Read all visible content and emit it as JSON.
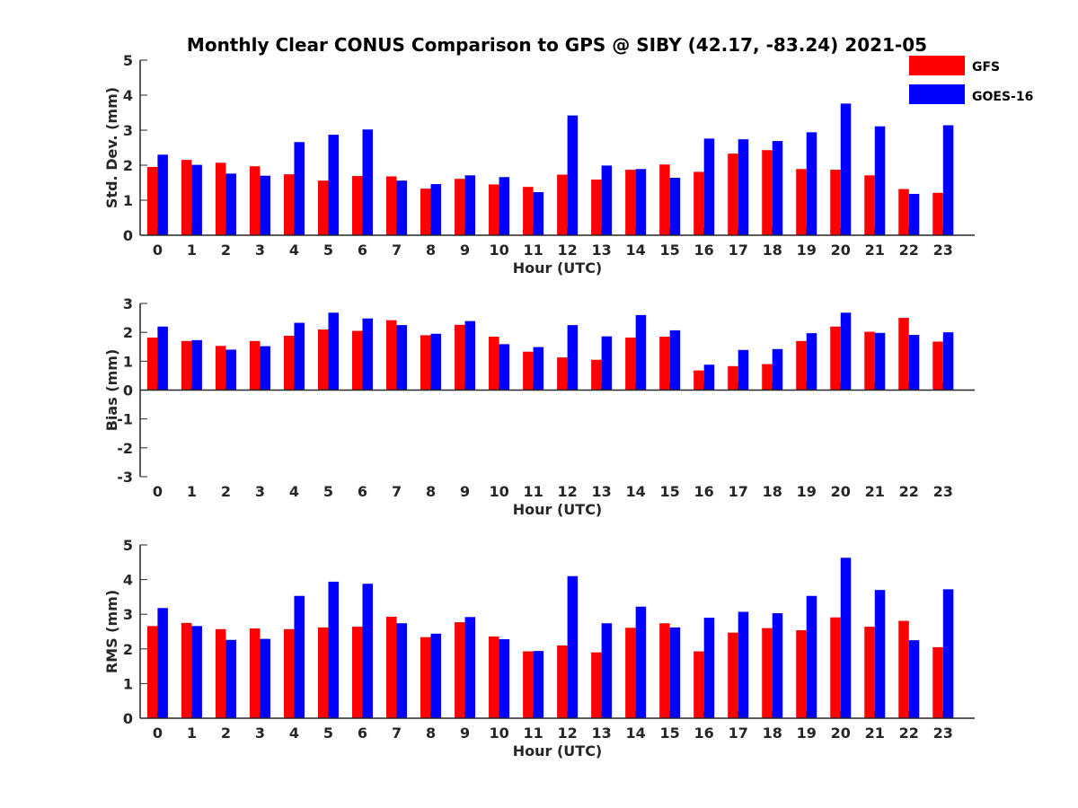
{
  "title": "Monthly Clear CONUS Comparison to GPS @ SIBY (42.17, -83.24) 2021-05",
  "legend": [
    {
      "name": "GFS",
      "color": "#ff0000"
    },
    {
      "name": "GOES-16",
      "color": "#0000ff"
    }
  ],
  "chart_data": [
    {
      "type": "bar",
      "ylabel": "Std. Dev. (mm)",
      "xlabel": "Hour (UTC)",
      "ylim": [
        0,
        5
      ],
      "yticks": [
        0,
        1,
        2,
        3,
        4,
        5
      ],
      "categories": [
        "0",
        "1",
        "2",
        "3",
        "4",
        "5",
        "6",
        "7",
        "8",
        "9",
        "10",
        "11",
        "12",
        "13",
        "14",
        "15",
        "16",
        "17",
        "18",
        "19",
        "20",
        "21",
        "22",
        "23"
      ],
      "series": [
        {
          "name": "GFS",
          "color": "#ff0000",
          "values": [
            1.95,
            2.15,
            2.07,
            1.97,
            1.74,
            1.56,
            1.69,
            1.68,
            1.33,
            1.61,
            1.45,
            1.38,
            1.73,
            1.59,
            1.87,
            2.02,
            1.81,
            2.33,
            2.43,
            1.89,
            1.87,
            1.71,
            1.32,
            1.21
          ]
        },
        {
          "name": "GOES-16",
          "color": "#0000ff",
          "values": [
            2.3,
            2.01,
            1.76,
            1.7,
            2.66,
            2.87,
            3.02,
            1.56,
            1.46,
            1.71,
            1.66,
            1.23,
            3.42,
            1.99,
            1.89,
            1.64,
            2.76,
            2.74,
            2.69,
            2.94,
            3.76,
            3.11,
            1.18,
            3.14
          ]
        }
      ]
    },
    {
      "type": "bar",
      "ylabel": "Bias (mm)",
      "xlabel": "Hour (UTC)",
      "ylim": [
        -3,
        3
      ],
      "yticks": [
        -3,
        -2,
        -1,
        0,
        1,
        2,
        3
      ],
      "categories": [
        "0",
        "1",
        "2",
        "3",
        "4",
        "5",
        "6",
        "7",
        "8",
        "9",
        "10",
        "11",
        "12",
        "13",
        "14",
        "15",
        "16",
        "17",
        "18",
        "19",
        "20",
        "21",
        "22",
        "23"
      ],
      "series": [
        {
          "name": "GFS",
          "color": "#ff0000",
          "values": [
            1.82,
            1.7,
            1.53,
            1.7,
            1.88,
            2.1,
            2.05,
            2.42,
            1.9,
            2.26,
            1.85,
            1.33,
            1.13,
            1.05,
            1.82,
            1.85,
            0.68,
            0.83,
            0.9,
            1.7,
            2.2,
            2.02,
            2.5,
            1.68
          ]
        },
        {
          "name": "GOES-16",
          "color": "#0000ff",
          "values": [
            2.2,
            1.73,
            1.4,
            1.52,
            2.33,
            2.68,
            2.48,
            2.25,
            1.95,
            2.39,
            1.59,
            1.49,
            2.25,
            1.86,
            2.6,
            2.07,
            0.88,
            1.39,
            1.42,
            1.97,
            2.68,
            1.98,
            1.91,
            2.0
          ]
        }
      ]
    },
    {
      "type": "bar",
      "ylabel": "RMS (mm)",
      "xlabel": "Hour (UTC)",
      "ylim": [
        0,
        5
      ],
      "yticks": [
        0,
        1,
        2,
        3,
        4,
        5
      ],
      "categories": [
        "0",
        "1",
        "2",
        "3",
        "4",
        "5",
        "6",
        "7",
        "8",
        "9",
        "10",
        "11",
        "12",
        "13",
        "14",
        "15",
        "16",
        "17",
        "18",
        "19",
        "20",
        "21",
        "22",
        "23"
      ],
      "series": [
        {
          "name": "GFS",
          "color": "#ff0000",
          "values": [
            2.66,
            2.75,
            2.57,
            2.59,
            2.57,
            2.62,
            2.64,
            2.93,
            2.34,
            2.77,
            2.36,
            1.93,
            2.1,
            1.9,
            2.61,
            2.74,
            1.93,
            2.47,
            2.6,
            2.54,
            2.91,
            2.64,
            2.81,
            2.05
          ]
        },
        {
          "name": "GOES-16",
          "color": "#0000ff",
          "values": [
            3.18,
            2.66,
            2.26,
            2.29,
            3.53,
            3.94,
            3.88,
            2.74,
            2.44,
            2.92,
            2.28,
            1.94,
            4.1,
            2.74,
            3.22,
            2.62,
            2.9,
            3.07,
            3.03,
            3.53,
            4.63,
            3.7,
            2.25,
            3.72
          ]
        }
      ]
    }
  ]
}
